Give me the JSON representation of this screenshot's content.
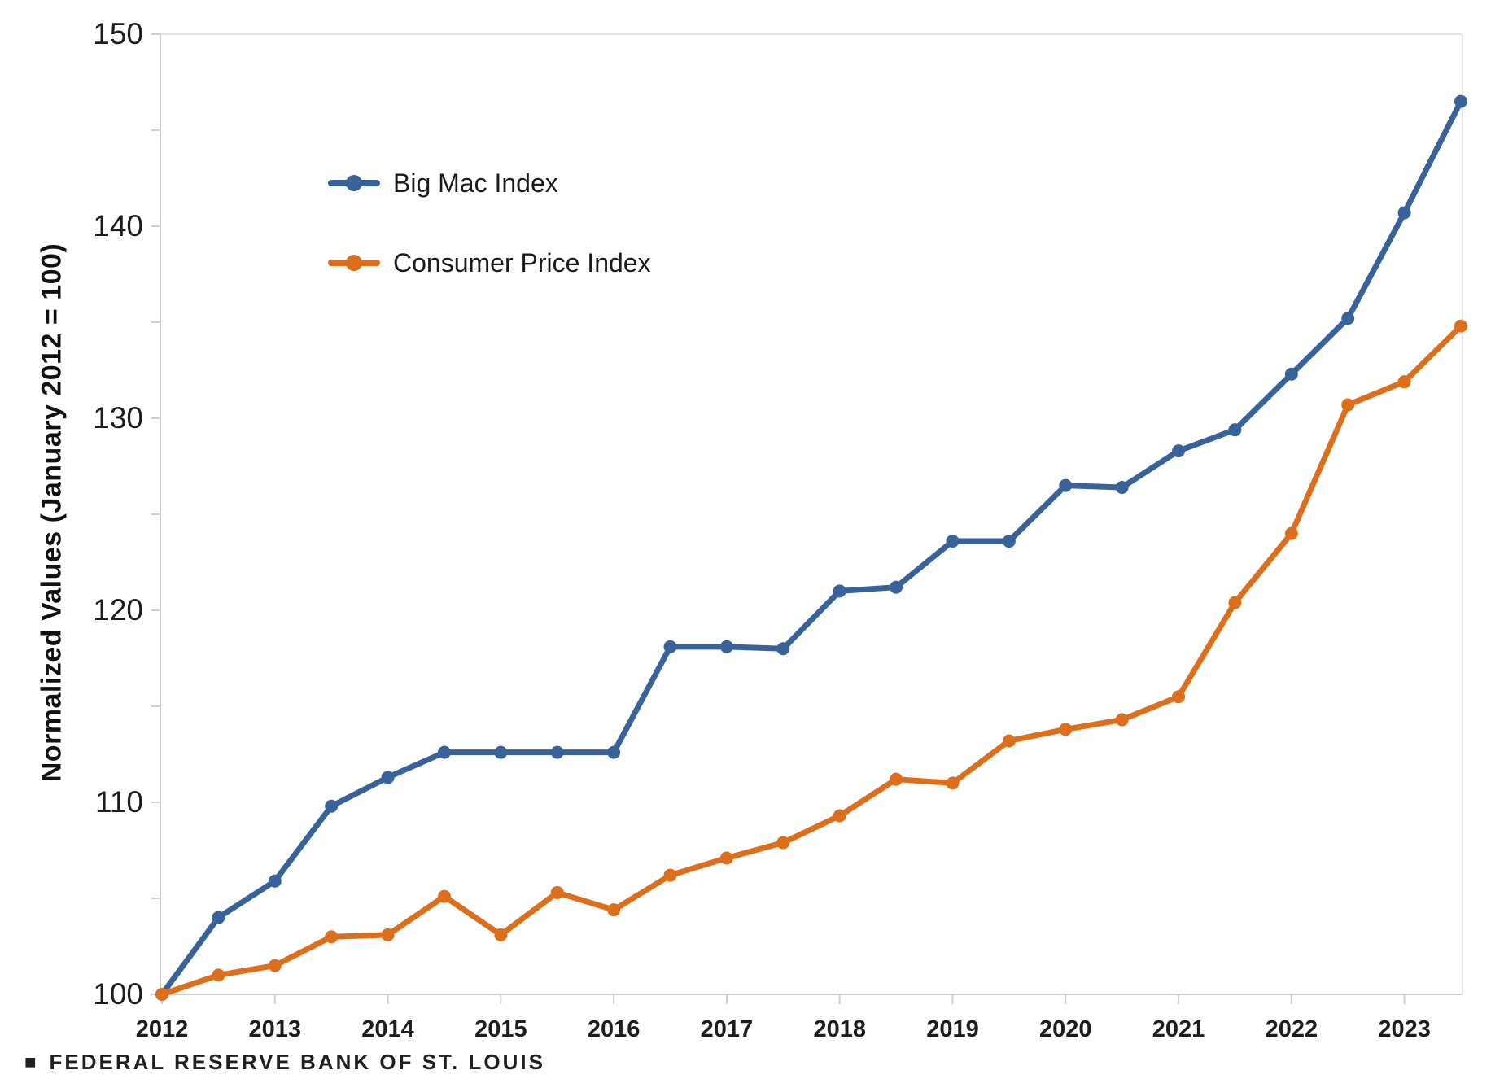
{
  "page": {
    "background": "#ffffff"
  },
  "chart_data": {
    "type": "line",
    "title": "",
    "xlabel": "",
    "ylabel": "Normalized Values (January 2012 = 100)",
    "xlim": [
      2012,
      2023.5
    ],
    "ylim": [
      100,
      150
    ],
    "grid": false,
    "legend_position": "upper-left-inside",
    "x_tick_labels": [
      "2012",
      "2013",
      "2014",
      "2015",
      "2016",
      "2017",
      "2018",
      "2019",
      "2020",
      "2021",
      "2022",
      "2023"
    ],
    "x_tick_values": [
      2012,
      2013,
      2014,
      2015,
      2016,
      2017,
      2018,
      2019,
      2020,
      2021,
      2022,
      2023
    ],
    "y_tick_labels": [
      "100",
      "110",
      "120",
      "130",
      "140",
      "150"
    ],
    "y_tick_values": [
      100,
      110,
      120,
      130,
      140,
      150
    ],
    "y_minor_ticks": [
      105,
      115,
      125,
      135,
      145
    ],
    "x": [
      2012.0,
      2012.5,
      2013.0,
      2013.5,
      2014.0,
      2014.5,
      2015.0,
      2015.5,
      2016.0,
      2016.5,
      2017.0,
      2017.5,
      2018.0,
      2018.5,
      2019.0,
      2019.5,
      2020.0,
      2020.5,
      2021.0,
      2021.5,
      2022.0,
      2022.5,
      2023.0,
      2023.5
    ],
    "series": [
      {
        "name": "Big Mac Index",
        "color": "#38639A",
        "values": [
          100.0,
          104.0,
          105.9,
          109.8,
          111.3,
          112.6,
          112.6,
          112.6,
          112.6,
          118.1,
          118.1,
          118.0,
          121.0,
          121.2,
          123.6,
          123.6,
          126.5,
          126.4,
          128.3,
          129.4,
          132.3,
          135.2,
          140.7,
          146.5
        ]
      },
      {
        "name": "Consumer Price Index",
        "color": "#DC6E1C",
        "values": [
          100.0,
          101.0,
          101.5,
          103.0,
          103.1,
          105.1,
          103.1,
          105.3,
          104.4,
          106.2,
          107.1,
          107.9,
          109.3,
          111.2,
          111.0,
          113.2,
          113.8,
          114.3,
          115.5,
          120.4,
          124.0,
          130.7,
          131.9,
          134.8
        ]
      }
    ],
    "colors": {
      "axis_line": "#CFCFCF",
      "frame_line": "#E4E4E4",
      "tick_line": "#CFCFCF",
      "tick_label": "#1D1D1D"
    }
  },
  "footer": {
    "logo_square": "■",
    "text": "FEDERAL RESERVE BANK OF ST. LOUIS"
  }
}
